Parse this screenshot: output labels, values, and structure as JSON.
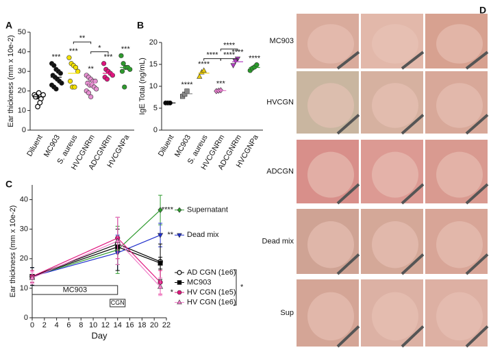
{
  "chart_data": [
    {
      "type": "dotplot",
      "panel": "A",
      "y_label": "Ear thickness (mm x 10e-2)",
      "ylim": [
        0,
        50
      ],
      "yticks": [
        0,
        10,
        20,
        30,
        40,
        50
      ],
      "groups": [
        {
          "name": "Diluent",
          "color": "#000000",
          "marker": "circle",
          "open": true,
          "values": [
            18,
            17,
            19,
            16,
            18,
            17,
            12,
            14
          ],
          "mean": 17
        },
        {
          "name": "MC903",
          "color": "#111111",
          "marker": "circle",
          "open": false,
          "values": [
            34,
            33,
            31,
            30,
            29,
            28,
            27,
            26,
            25,
            24,
            23,
            22,
            21
          ],
          "mean": 27,
          "stars": "***"
        },
        {
          "name": "S. aureus",
          "color": "#f2e000",
          "marker": "circle",
          "open": false,
          "values": [
            37,
            34,
            33,
            32,
            30,
            25,
            22,
            22
          ],
          "mean": 29,
          "stars": "***"
        },
        {
          "name": "HVCGNRm",
          "color": "#e58fd0",
          "marker": "circle",
          "open": false,
          "values": [
            28,
            27,
            26,
            25,
            25,
            24,
            23,
            23,
            22,
            21,
            20,
            19,
            17
          ],
          "mean": 24,
          "stars": "**"
        },
        {
          "name": "ADCGNRm",
          "color": "#e0157e",
          "marker": "circle",
          "open": false,
          "values": [
            34,
            31,
            30,
            29,
            28,
            27,
            26
          ],
          "mean": 29,
          "stars": "***"
        },
        {
          "name": "HVCGNPa",
          "color": "#2e9a2e",
          "marker": "circle",
          "open": false,
          "values": [
            38,
            34,
            32,
            32,
            31,
            30,
            22
          ],
          "mean": 32,
          "stars": "***"
        }
      ],
      "brackets": [
        {
          "from": 2,
          "to": 3,
          "y": 45,
          "label": "**"
        },
        {
          "from": 3,
          "to": 4,
          "y": 40,
          "label": "*"
        }
      ]
    },
    {
      "type": "dotplot",
      "panel": "B",
      "y_label": "IgE Total (ng/mL)",
      "ylim": [
        0,
        20
      ],
      "yticks": [
        0,
        5,
        10,
        15,
        20
      ],
      "groups": [
        {
          "name": "Diluent",
          "color": "#000000",
          "marker": "circle",
          "open": false,
          "values": [
            6.2,
            6.2,
            6.2
          ],
          "mean": 6.2
        },
        {
          "name": "MC903",
          "color": "#888888",
          "marker": "square",
          "open": false,
          "values": [
            7.7,
            8.2,
            8.9
          ],
          "mean": 8.3,
          "stars": "****"
        },
        {
          "name": "S. aureus",
          "color": "#f0d000",
          "marker": "triangle",
          "open": false,
          "values": [
            12.2,
            13.2,
            13.6
          ],
          "mean": 13,
          "stars": "****"
        },
        {
          "name": "HVCGNRm",
          "color": "#e07bc8",
          "marker": "diamond",
          "open": false,
          "values": [
            8.9,
            9.0,
            9.1
          ],
          "mean": 9,
          "stars": "***"
        },
        {
          "name": "ADCGNRm",
          "color": "#b03cc0",
          "marker": "tri-down",
          "open": false,
          "values": [
            14.8,
            15.8,
            16.3
          ],
          "mean": 15.6,
          "stars": "****"
        },
        {
          "name": "HVCGNPa",
          "color": "#2a9a2a",
          "marker": "circle",
          "open": false,
          "values": [
            13.6,
            14.1,
            14.4,
            14.9
          ],
          "mean": 14.3,
          "stars": "****"
        }
      ],
      "brackets": [
        {
          "from": 2,
          "to": 3,
          "y": 16.3,
          "label": "****"
        },
        {
          "from": 3,
          "to": 4,
          "y": 16.3,
          "label": "****"
        },
        {
          "from": 3,
          "to": 4,
          "y": 18.5,
          "label": "****"
        }
      ]
    },
    {
      "type": "line",
      "panel": "C",
      "x_label": "Day",
      "y_label": "Ear thickness (mm x 10e-2)",
      "xlim": [
        0,
        22
      ],
      "xticks": [
        0,
        2,
        4,
        6,
        8,
        10,
        12,
        14,
        16,
        18,
        20,
        22
      ],
      "ylim": [
        0,
        45
      ],
      "yticks": [
        0,
        10,
        20,
        30,
        40
      ],
      "x": [
        0,
        14,
        21
      ],
      "series": [
        {
          "name": "Supernatant",
          "color": "#2e9a2e",
          "marker": "diamond",
          "open": false,
          "values": [
            14,
            23,
            36.5
          ],
          "errors": [
            3,
            8,
            5
          ],
          "stars": "****",
          "legend": "line-end"
        },
        {
          "name": "Dead mix",
          "color": "#1f2fcc",
          "marker": "tri-down",
          "open": false,
          "values": [
            14,
            22,
            28
          ],
          "errors": [
            3,
            6,
            4
          ],
          "stars": "**",
          "legend": "line-end"
        },
        {
          "name": "AD CGN (1e6)",
          "color": "#000000",
          "marker": "circle",
          "open": true,
          "values": [
            14,
            25,
            19
          ],
          "errors": [
            3,
            9,
            6
          ],
          "legend": "box"
        },
        {
          "name": "MC903",
          "color": "#000000",
          "marker": "square",
          "open": false,
          "values": [
            14,
            24,
            18.5
          ],
          "errors": [
            2,
            6,
            2
          ],
          "legend": "box"
        },
        {
          "name": "HV CGN (1e5)",
          "color": "#e0157e",
          "marker": "circle",
          "open": false,
          "values": [
            14,
            27,
            12
          ],
          "errors": [
            2,
            7,
            4
          ],
          "stars": "*",
          "legend": "box"
        },
        {
          "name": "HV CGN (1e6)",
          "color": "#f07cc8",
          "marker": "triangle",
          "open": false,
          "values": [
            13.5,
            26,
            10.5
          ],
          "errors": [
            2,
            8,
            3
          ],
          "legend": "box"
        }
      ],
      "boxes": [
        {
          "label": "MC903",
          "from": 0,
          "to": 14
        },
        {
          "label": "CGN",
          "from": 14,
          "to": 14
        }
      ],
      "legend_bracket": "*"
    }
  ],
  "photo_panel": {
    "panel": "D",
    "rows": [
      "MC903",
      "HVCGN",
      "ADCGN",
      "Dead mix",
      "Sup"
    ]
  }
}
